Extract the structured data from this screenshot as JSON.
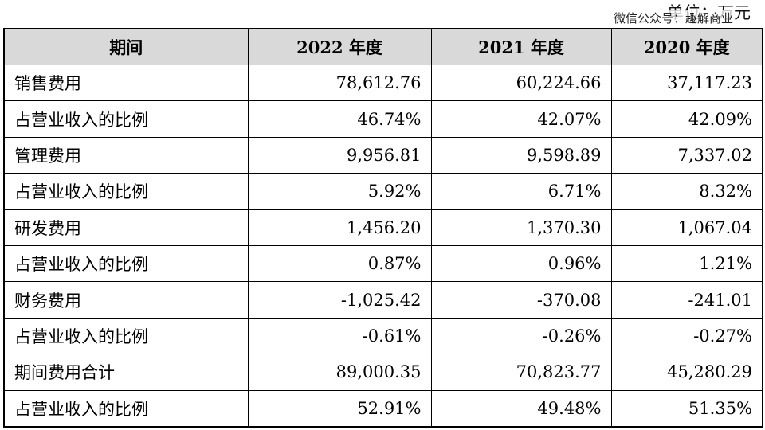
{
  "unit_label": "单位：万元",
  "watermark": "微信公众号：趣解商业",
  "table": {
    "headers": [
      "期间",
      "2022 年度",
      "2021 年度",
      "2020 年度"
    ],
    "rows": [
      {
        "label": "销售费用",
        "values": [
          "78,612.76",
          "60,224.66",
          "37,117.23"
        ]
      },
      {
        "label": "占营业收入的比例",
        "values": [
          "46.74%",
          "42.07%",
          "42.09%"
        ]
      },
      {
        "label": "管理费用",
        "values": [
          "9,956.81",
          "9,598.89",
          "7,337.02"
        ]
      },
      {
        "label": "占营业收入的比例",
        "values": [
          "5.92%",
          "6.71%",
          "8.32%"
        ]
      },
      {
        "label": "研发费用",
        "values": [
          "1,456.20",
          "1,370.30",
          "1,067.04"
        ]
      },
      {
        "label": "占营业收入的比例",
        "values": [
          "0.87%",
          "0.96%",
          "1.21%"
        ]
      },
      {
        "label": "财务费用",
        "values": [
          "-1,025.42",
          "-370.08",
          "-241.01"
        ]
      },
      {
        "label": "占营业收入的比例",
        "values": [
          "-0.61%",
          "-0.26%",
          "-0.27%"
        ]
      },
      {
        "label": "期间费用合计",
        "values": [
          "89,000.35",
          "70,823.77",
          "45,280.29"
        ]
      },
      {
        "label": "占营业收入的比例",
        "values": [
          "52.91%",
          "49.48%",
          "51.35%"
        ]
      }
    ]
  },
  "colors": {
    "header_bg": "#d9d9d9",
    "border": "#000000"
  }
}
